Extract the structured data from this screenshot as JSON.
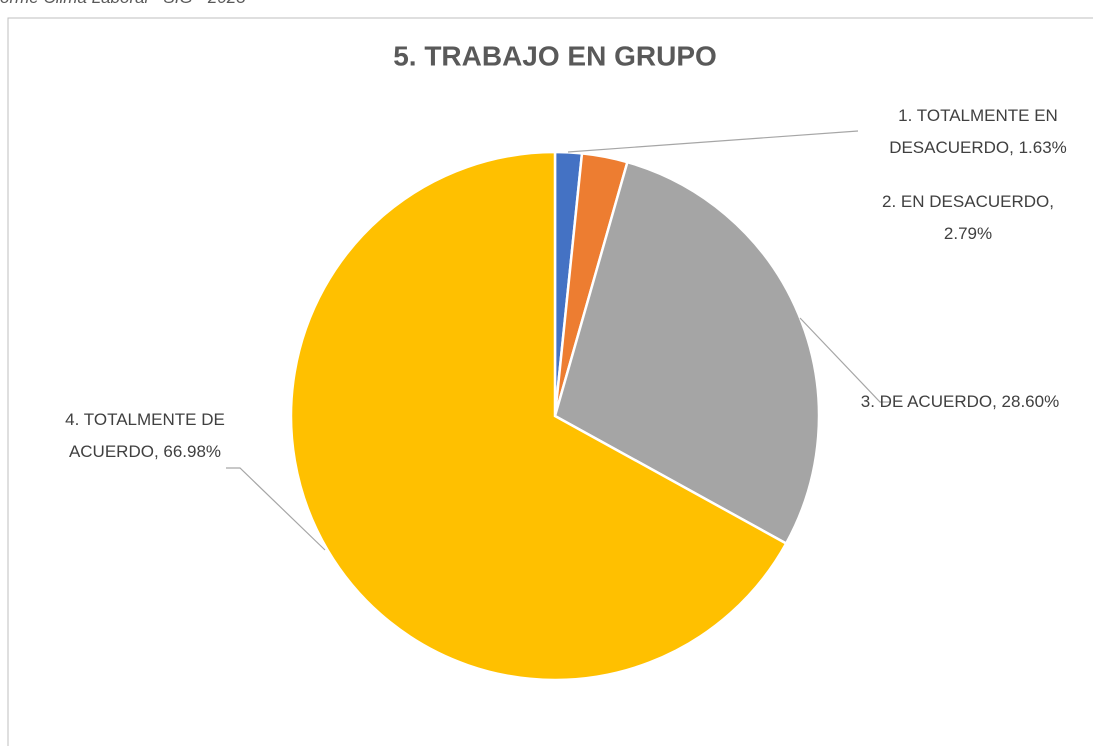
{
  "chart_data": {
    "type": "pie",
    "caption": "orme Clima Laboral - SIG - 2023",
    "title": "5. TRABAJO EN GRUPO",
    "values": [
      1.63,
      2.79,
      28.6,
      66.98
    ],
    "value_labels": [
      "1. TOTALMENTE EN DESACUERDO, 1.63%",
      "2. EN DESACUERDO, 2.79%",
      "3. DE ACUERDO, 28.60%",
      "4. TOTALMENTE DE ACUERDO, 66.98%"
    ],
    "colors": [
      "#4472c4",
      "#ed7d31",
      "#a5a5a5",
      "#ffc000"
    ]
  }
}
